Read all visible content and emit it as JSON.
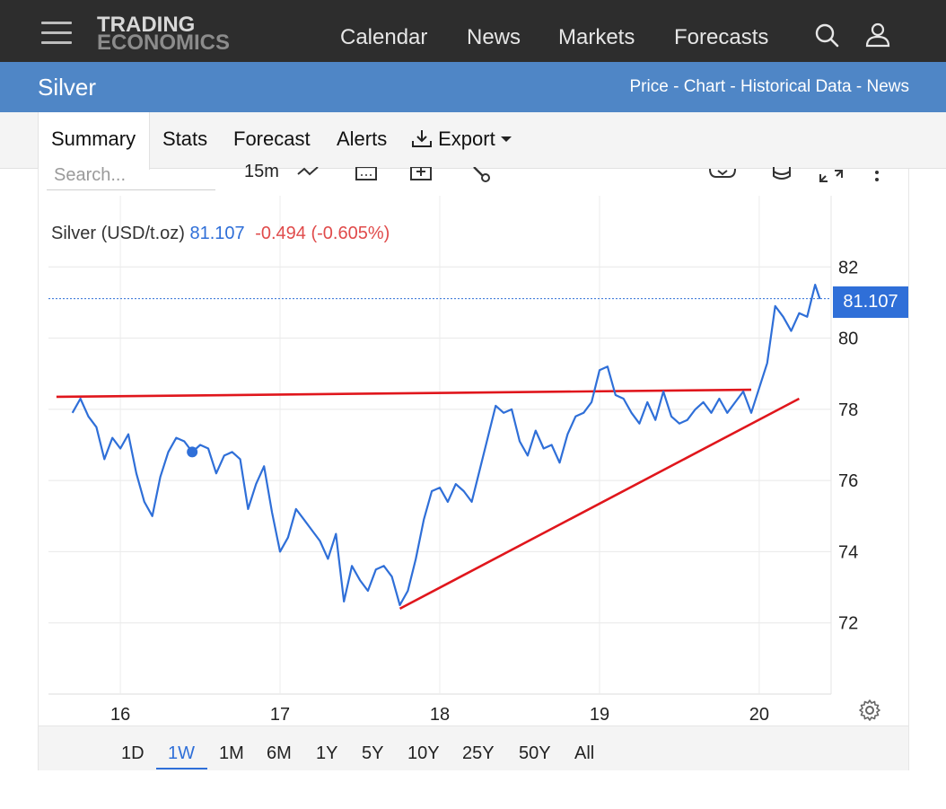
{
  "nav": {
    "logo_line1": "TRADING",
    "logo_line2": "ECONOMICS",
    "links": [
      "Calendar",
      "News",
      "Markets",
      "Forecasts"
    ],
    "icons": [
      "menu-icon",
      "search-icon",
      "user-icon"
    ]
  },
  "header": {
    "title": "Silver",
    "links": [
      "Price",
      "Chart",
      "Historical Data",
      "News"
    ],
    "separator": " - "
  },
  "tabs": {
    "items": [
      "Summary",
      "Stats",
      "Forecast",
      "Alerts"
    ],
    "export_label": "Export",
    "active": "Summary"
  },
  "toolbar": {
    "search_placeholder": "Search...",
    "interval": "15m",
    "icons": [
      "chart-type-icon",
      "calendar-icon",
      "add-compare-icon",
      "indicators-icon",
      "download-icon",
      "database-icon",
      "fullscreen-icon",
      "more-options-icon"
    ]
  },
  "legend": {
    "name": "Silver (USD/t.oz)",
    "value": "81.107",
    "change": "-0.494",
    "change_pct": "(-0.605%)"
  },
  "price_tag": "81.107",
  "periods": {
    "items": [
      "1D",
      "1W",
      "1M",
      "6M",
      "1Y",
      "5Y",
      "10Y",
      "25Y",
      "50Y",
      "All"
    ],
    "active": "1W"
  },
  "colors": {
    "nav_bg": "#2d2d2d",
    "header_bg": "#4f86c6",
    "series": "#2f6fd8",
    "trendline": "#e0161c",
    "negative": "#e04b4b"
  },
  "chart_data": {
    "type": "line",
    "series": [
      {
        "name": "Silver (USD/t.oz)",
        "x": [
          15.7,
          15.75,
          15.8,
          15.85,
          15.9,
          15.95,
          16.0,
          16.05,
          16.1,
          16.15,
          16.2,
          16.25,
          16.3,
          16.35,
          16.4,
          16.45,
          16.5,
          16.55,
          16.6,
          16.65,
          16.7,
          16.75,
          16.8,
          16.85,
          16.9,
          16.95,
          17.0,
          17.05,
          17.1,
          17.15,
          17.2,
          17.25,
          17.3,
          17.35,
          17.4,
          17.45,
          17.5,
          17.55,
          17.6,
          17.65,
          17.7,
          17.75,
          17.8,
          17.85,
          17.9,
          17.95,
          18.0,
          18.05,
          18.1,
          18.15,
          18.2,
          18.25,
          18.3,
          18.35,
          18.4,
          18.45,
          18.5,
          18.55,
          18.6,
          18.65,
          18.7,
          18.75,
          18.8,
          18.85,
          18.9,
          18.95,
          19.0,
          19.05,
          19.1,
          19.15,
          19.2,
          19.25,
          19.3,
          19.35,
          19.4,
          19.45,
          19.5,
          19.55,
          19.6,
          19.65,
          19.7,
          19.75,
          19.8,
          19.85,
          19.9,
          19.95,
          20.0,
          20.05,
          20.1,
          20.15,
          20.2,
          20.25,
          20.3,
          20.35,
          20.38
        ],
        "values": [
          77.9,
          78.3,
          77.8,
          77.5,
          76.6,
          77.2,
          76.9,
          77.3,
          76.2,
          75.4,
          75.0,
          76.1,
          76.8,
          77.2,
          77.1,
          76.8,
          77.0,
          76.9,
          76.2,
          76.7,
          76.8,
          76.6,
          75.2,
          75.9,
          76.4,
          75.1,
          74.0,
          74.4,
          75.2,
          74.9,
          74.6,
          74.3,
          73.8,
          74.5,
          72.6,
          73.6,
          73.2,
          72.9,
          73.5,
          73.6,
          73.3,
          72.5,
          72.9,
          73.8,
          74.9,
          75.7,
          75.8,
          75.4,
          75.9,
          75.7,
          75.4,
          76.3,
          77.2,
          78.1,
          77.9,
          78.0,
          77.1,
          76.7,
          77.4,
          76.9,
          77.0,
          76.5,
          77.3,
          77.8,
          77.9,
          78.2,
          79.1,
          79.2,
          78.4,
          78.3,
          77.9,
          77.6,
          78.2,
          77.7,
          78.5,
          77.8,
          77.6,
          77.7,
          78.0,
          78.2,
          77.9,
          78.3,
          77.9,
          78.2,
          78.5,
          77.9,
          78.6,
          79.3,
          80.9,
          80.6,
          80.2,
          80.7,
          80.6,
          81.5,
          81.1
        ]
      }
    ],
    "x_ticks": [
      "16",
      "17",
      "18",
      "19",
      "20"
    ],
    "x_tick_values": [
      16,
      17,
      18,
      19,
      20
    ],
    "y_ticks": [
      72,
      74,
      76,
      78,
      80,
      82
    ],
    "ylim": [
      70,
      84
    ],
    "xlim": [
      15.55,
      20.45
    ],
    "last_value": 81.107,
    "trendlines": [
      {
        "label": "resistance",
        "x": [
          15.6,
          19.95
        ],
        "y": [
          78.35,
          78.55
        ]
      },
      {
        "label": "support",
        "x": [
          17.75,
          20.25
        ],
        "y": [
          72.4,
          78.3
        ]
      }
    ],
    "grid": true,
    "axis_position": "right",
    "xlabel": "",
    "ylabel": "",
    "title": ""
  }
}
